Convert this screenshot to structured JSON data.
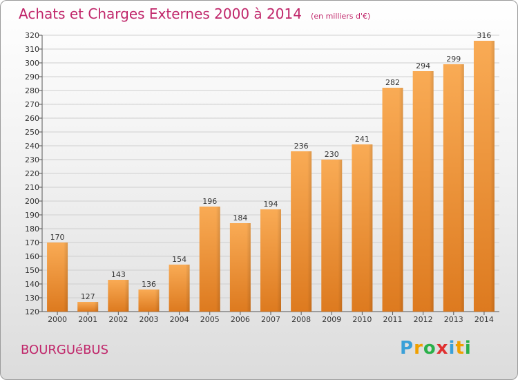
{
  "title": "Achats et Charges Externes 2000 à 2014",
  "unit": "(en milliers d'€)",
  "city": "BOURGUéBUS",
  "logo": {
    "letters": [
      "P",
      "r",
      "o",
      "x",
      "i",
      "t",
      "i"
    ],
    "colors": [
      "#3aa0d8",
      "#f0a000",
      "#2bb04a",
      "#e03030",
      "#3aa0d8",
      "#f0a000",
      "#2bb04a"
    ]
  },
  "colors": {
    "text": "#c0266a",
    "bar_light": "#f9ab55",
    "bar_dark": "#dd7a1f"
  },
  "chart_data": {
    "type": "bar",
    "categories": [
      "2000",
      "2001",
      "2002",
      "2003",
      "2004",
      "2005",
      "2006",
      "2007",
      "2008",
      "2009",
      "2010",
      "2011",
      "2012",
      "2013",
      "2014"
    ],
    "values": [
      170,
      127,
      143,
      136,
      154,
      196,
      184,
      194,
      236,
      230,
      241,
      282,
      294,
      299,
      316
    ],
    "ylim": [
      120,
      320
    ],
    "yticks": [
      120,
      130,
      140,
      150,
      160,
      170,
      180,
      190,
      200,
      210,
      220,
      230,
      240,
      250,
      260,
      270,
      280,
      290,
      300,
      310,
      320
    ],
    "grid": true
  }
}
